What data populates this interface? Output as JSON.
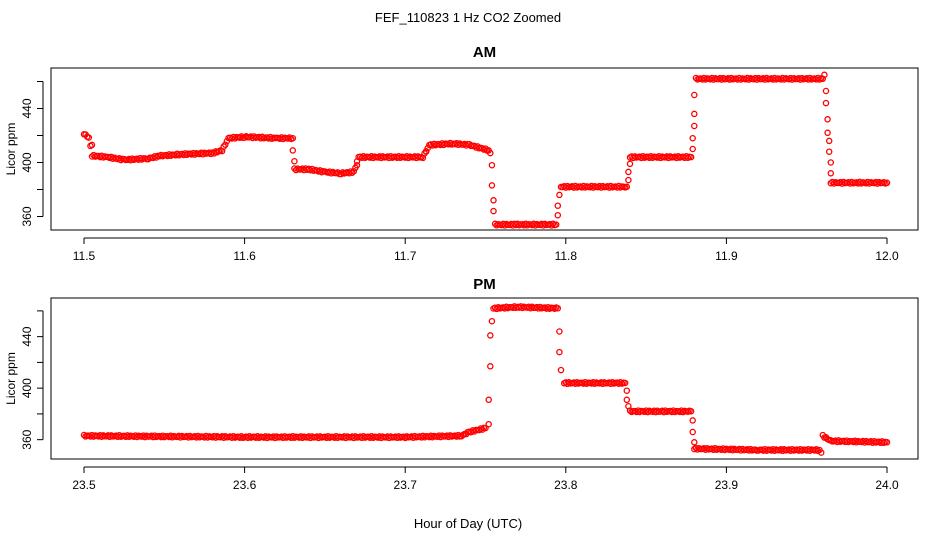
{
  "figure": {
    "title": "FEF_110823  1 Hz CO2 Zoomed",
    "xlabel": "Hour of Day (UTC)"
  },
  "colors": {
    "points": "#ff0000"
  },
  "chart_data": [
    {
      "type": "scatter",
      "title": "AM",
      "ylabel": "Licor ppm",
      "xlim": [
        11.5,
        12.0
      ],
      "ylim": [
        350,
        470
      ],
      "xticks": [
        "11.5",
        "11.6",
        "11.7",
        "11.8",
        "11.9",
        "12.0"
      ],
      "yticks": [
        "360",
        "400",
        "440"
      ],
      "segments": [
        [
          [
            11.5,
            421
          ],
          [
            11.503,
            419
          ],
          [
            11.505,
            405
          ],
          [
            11.515,
            404
          ],
          [
            11.525,
            402
          ],
          [
            11.54,
            403
          ],
          [
            11.548,
            405
          ],
          [
            11.56,
            406
          ],
          [
            11.58,
            407
          ],
          [
            11.586,
            409
          ],
          [
            11.59,
            418
          ],
          [
            11.6,
            419
          ],
          [
            11.62,
            418
          ],
          [
            11.63,
            418
          ]
        ],
        [
          [
            11.631,
            395
          ],
          [
            11.64,
            395
          ],
          [
            11.65,
            393
          ],
          [
            11.66,
            392
          ],
          [
            11.668,
            393
          ],
          [
            11.671,
            404
          ],
          [
            11.69,
            404
          ],
          [
            11.711,
            404
          ],
          [
            11.715,
            413
          ],
          [
            11.73,
            414
          ],
          [
            11.74,
            413
          ],
          [
            11.752,
            409
          ]
        ],
        [
          [
            11.756,
            354
          ],
          [
            11.77,
            354
          ],
          [
            11.794,
            354
          ]
        ],
        [
          [
            11.797,
            382
          ],
          [
            11.838,
            382
          ]
        ],
        [
          [
            11.84,
            404
          ],
          [
            11.878,
            404
          ]
        ],
        [
          [
            11.881,
            462
          ],
          [
            11.96,
            462
          ]
        ],
        [
          [
            11.965,
            385
          ],
          [
            12.0,
            385
          ]
        ]
      ],
      "transitions": [
        [
          11.505,
          413
        ],
        [
          11.63,
          409
        ],
        [
          11.631,
          401
        ],
        [
          11.67,
          398
        ],
        [
          11.713,
          408
        ],
        [
          11.753,
          407
        ],
        [
          11.754,
          398
        ],
        [
          11.754,
          383
        ],
        [
          11.755,
          372
        ],
        [
          11.755,
          364
        ],
        [
          11.795,
          361
        ],
        [
          11.795,
          368
        ],
        [
          11.796,
          376
        ],
        [
          11.839,
          387
        ],
        [
          11.839,
          393
        ],
        [
          11.84,
          399
        ],
        [
          11.879,
          410
        ],
        [
          11.879,
          418
        ],
        [
          11.88,
          427
        ],
        [
          11.88,
          436
        ],
        [
          11.88,
          450
        ],
        [
          11.961,
          465
        ],
        [
          11.962,
          453
        ],
        [
          11.962,
          444
        ],
        [
          11.963,
          432
        ],
        [
          11.963,
          422
        ],
        [
          11.964,
          416
        ],
        [
          11.964,
          408
        ],
        [
          11.965,
          400
        ],
        [
          11.965,
          392
        ]
      ]
    },
    {
      "type": "scatter",
      "title": "PM",
      "ylabel": "Licor ppm",
      "xlim": [
        23.5,
        24.0
      ],
      "ylim": [
        345,
        470
      ],
      "xticks": [
        "23.5",
        "23.6",
        "23.7",
        "23.8",
        "23.9",
        "24.0"
      ],
      "yticks": [
        "360",
        "400",
        "440"
      ],
      "segments": [
        [
          [
            23.5,
            363
          ],
          [
            23.6,
            362
          ],
          [
            23.7,
            362
          ],
          [
            23.735,
            363
          ],
          [
            23.74,
            366
          ],
          [
            23.75,
            369
          ]
        ],
        [
          [
            23.755,
            462
          ],
          [
            23.77,
            463
          ],
          [
            23.795,
            462
          ]
        ],
        [
          [
            23.799,
            404
          ],
          [
            23.837,
            404
          ]
        ],
        [
          [
            23.84,
            382
          ],
          [
            23.878,
            382
          ]
        ],
        [
          [
            23.88,
            353
          ],
          [
            23.92,
            352
          ],
          [
            23.958,
            352
          ]
        ],
        [
          [
            23.96,
            363
          ],
          [
            23.965,
            359
          ],
          [
            24.0,
            358
          ]
        ]
      ],
      "transitions": [
        [
          23.752,
          372
        ],
        [
          23.752,
          391
        ],
        [
          23.753,
          417
        ],
        [
          23.753,
          441
        ],
        [
          23.754,
          452
        ],
        [
          23.796,
          444
        ],
        [
          23.796,
          428
        ],
        [
          23.797,
          414
        ],
        [
          23.838,
          398
        ],
        [
          23.838,
          391
        ],
        [
          23.839,
          386
        ],
        [
          23.879,
          375
        ],
        [
          23.879,
          366
        ],
        [
          23.88,
          358
        ],
        [
          23.959,
          350
        ]
      ]
    }
  ]
}
